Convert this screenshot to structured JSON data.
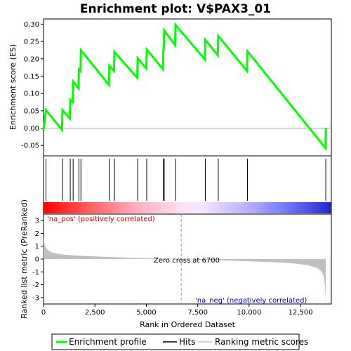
{
  "chart_data": {
    "type": "line",
    "title": "Enrichment plot: V$PAX3_01",
    "top_panel": {
      "ylabel": "Enrichment score (ES)",
      "ylim": [
        -0.08,
        0.315
      ],
      "yticks": [
        -0.05,
        0.0,
        0.05,
        0.1,
        0.15,
        0.2,
        0.25,
        0.3
      ],
      "ytick_labels": [
        "-0.05",
        "0.00",
        "0.05",
        "0.10",
        "0.15",
        "0.20",
        "0.25",
        "0.30"
      ],
      "series": [
        {
          "name": "Enrichment profile",
          "color": "#00ff00",
          "x": [
            0,
            120,
            900,
            920,
            1280,
            1300,
            1420,
            1440,
            1700,
            1720,
            1800,
            1820,
            3180,
            3200,
            3430,
            3450,
            4560,
            4580,
            5000,
            5020,
            5810,
            5830,
            5850,
            5870,
            6400,
            6420,
            7850,
            7870,
            8480,
            8500,
            9900,
            9920,
            13720,
            13730
          ],
          "y": [
            -0.005,
            0.052,
            -0.005,
            0.052,
            0.028,
            0.082,
            0.075,
            0.135,
            0.115,
            0.17,
            0.165,
            0.225,
            0.125,
            0.18,
            0.165,
            0.22,
            0.145,
            0.202,
            0.172,
            0.227,
            0.17,
            0.228,
            0.225,
            0.282,
            0.24,
            0.298,
            0.198,
            0.255,
            0.21,
            0.266,
            0.165,
            0.222,
            -0.058,
            0.0
          ]
        }
      ]
    },
    "hits": {
      "name": "Hits",
      "color": "#000000",
      "x": [
        120,
        920,
        1300,
        1440,
        1720,
        1820,
        3200,
        3450,
        4580,
        5020,
        5830,
        5870,
        6420,
        7870,
        8500,
        9920,
        13730
      ]
    },
    "bottom_panel": {
      "name": "Ranking metric scores",
      "color": "#c0c0c0",
      "ylabel": "Ranked list metric (PreRanked)",
      "ylim": [
        -3.5,
        3.5
      ],
      "yticks": [
        -3,
        -2,
        -1,
        0,
        1,
        2,
        3
      ],
      "ytick_labels": [
        "-3",
        "-2",
        "-1",
        "0",
        "1",
        "2",
        "3"
      ],
      "x": [
        0,
        30,
        80,
        150,
        250,
        400,
        600,
        900,
        1300,
        2000,
        3000,
        4000,
        5000,
        6000,
        6700,
        7500,
        8500,
        9500,
        10500,
        11500,
        12300,
        12900,
        13300,
        13550,
        13650,
        13700,
        13730
      ],
      "y": [
        1.75,
        1.3,
        1.0,
        0.8,
        0.65,
        0.52,
        0.43,
        0.36,
        0.3,
        0.24,
        0.17,
        0.11,
        0.06,
        0.02,
        0.0,
        -0.05,
        -0.1,
        -0.15,
        -0.2,
        -0.27,
        -0.36,
        -0.5,
        -0.7,
        -1.0,
        -1.5,
        -2.3,
        -3.4
      ]
    },
    "xlabel": "Rank in Ordered Dataset",
    "xlim": [
      0,
      14000
    ],
    "xticks": [
      0,
      2500,
      5000,
      7500,
      10000,
      12500
    ],
    "xtick_labels": [
      "0",
      "2,500",
      "5,000",
      "7,500",
      "10,000",
      "12,500"
    ],
    "zero_cross": 6700,
    "annotations": {
      "pos": "'na_pos' (positively correlated)",
      "neg": "'na_neg' (negatively correlated)",
      "zero": "Zero cross at 6700"
    },
    "colors": {
      "pos_annotation": "#cc0000",
      "neg_annotation": "#0000cc",
      "heat_red": "#ff0000",
      "heat_blue": "#0000ff"
    },
    "legend": {
      "placement": "bottom",
      "entries": [
        "Enrichment profile",
        "Hits",
        "Ranking metric scores"
      ]
    }
  }
}
